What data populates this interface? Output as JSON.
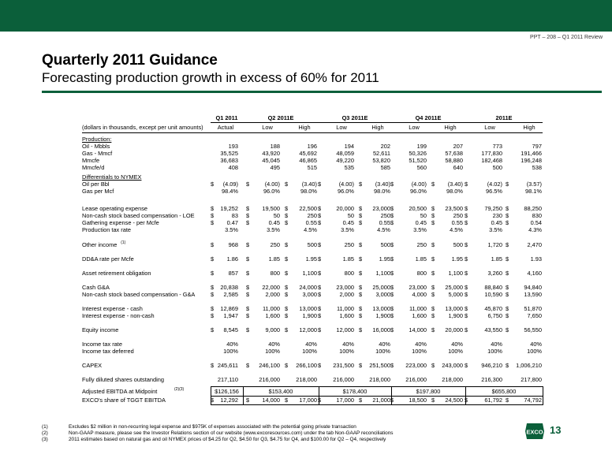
{
  "header": {
    "ppt_label": "PPT – 208 – Q1 2011 Review"
  },
  "title": "Quarterly 2011 Guidance",
  "subtitle": "Forecasting production growth in excess of 60% for 2011",
  "table": {
    "period_headers": [
      "Q1 2011",
      "Q2 2011E",
      "Q3 2011E",
      "Q4 2011E",
      "2011E"
    ],
    "units_label": "(dollars in thousands, except per unit amounts)",
    "sub_headers": [
      "Actual",
      "Low",
      "High",
      "Low",
      "High",
      "Low",
      "High",
      "Low",
      "High"
    ],
    "sections": {
      "production": "Production:",
      "differentials": "Differentials to NYMEX"
    },
    "rows": [
      {
        "label": "Oil - Mbbls",
        "dollar": false,
        "values": [
          "193",
          "188",
          "196",
          "194",
          "202",
          "199",
          "207",
          "773",
          "797"
        ]
      },
      {
        "label": "Gas - Mmcf",
        "dollar": false,
        "values": [
          "35,525",
          "43,920",
          "45,692",
          "48,059",
          "52,611",
          "50,326",
          "57,638",
          "177,830",
          "191,466"
        ]
      },
      {
        "label": "Mmcfe",
        "dollar": false,
        "values": [
          "36,683",
          "45,045",
          "46,865",
          "49,220",
          "53,820",
          "51,520",
          "58,880",
          "182,468",
          "196,248"
        ]
      },
      {
        "label": "Mmcfe/d",
        "dollar": false,
        "values": [
          "408",
          "495",
          "515",
          "535",
          "585",
          "560",
          "640",
          "500",
          "538"
        ]
      },
      {
        "label": "Oil per Bbl",
        "dollar": true,
        "values": [
          "(4.09)",
          "(4.00)",
          "(3.40)",
          "(4.00)",
          "(3.40)",
          "(4.00)",
          "(3.40)",
          "(4.02)",
          "(3.57)"
        ]
      },
      {
        "label": "Gas per Mcf",
        "dollar": false,
        "values": [
          "98.4%",
          "96.0%",
          "98.0%",
          "96.0%",
          "98.0%",
          "96.0%",
          "98.0%",
          "96.5%",
          "98.1%"
        ]
      },
      {
        "label": "Lease operating expense",
        "dollar": true,
        "values": [
          "19,252",
          "19,500",
          "22,500",
          "20,000",
          "23,000",
          "20,500",
          "23,500",
          "79,250",
          "88,250"
        ]
      },
      {
        "label": "Non-cash stock based compensation - LOE",
        "dollar": true,
        "values": [
          "83",
          "50",
          "250",
          "50",
          "250",
          "50",
          "250",
          "230",
          "830"
        ]
      },
      {
        "label": "Gathering expense - per Mcfe",
        "dollar": true,
        "values": [
          "0.47",
          "0.45",
          "0.55",
          "0.45",
          "0.55",
          "0.45",
          "0.55",
          "0.45",
          "0.54"
        ]
      },
      {
        "label": "Production tax rate",
        "dollar": false,
        "values": [
          "3.5%",
          "3.5%",
          "4.5%",
          "3.5%",
          "4.5%",
          "3.5%",
          "4.5%",
          "3.5%",
          "4.3%"
        ]
      },
      {
        "label": "Other income",
        "sup": "(1)",
        "dollar": true,
        "values": [
          "968",
          "250",
          "500",
          "250",
          "500",
          "250",
          "500",
          "1,720",
          "2,470"
        ]
      },
      {
        "label": "DD&A rate per Mcfe",
        "dollar": true,
        "values": [
          "1.86",
          "1.85",
          "1.95",
          "1.85",
          "1.95",
          "1.85",
          "1.95",
          "1.85",
          "1.93"
        ]
      },
      {
        "label": "Asset retirement obligation",
        "dollar": true,
        "values": [
          "857",
          "800",
          "1,100",
          "800",
          "1,100",
          "800",
          "1,100",
          "3,260",
          "4,160"
        ]
      },
      {
        "label": "Cash G&A",
        "dollar": true,
        "values": [
          "20,838",
          "22,000",
          "24,000",
          "23,000",
          "25,000",
          "23,000",
          "25,000",
          "88,840",
          "94,840"
        ]
      },
      {
        "label": "Non-cash stock based compensation - G&A",
        "dollar": true,
        "values": [
          "2,585",
          "2,000",
          "3,000",
          "2,000",
          "3,000",
          "4,000",
          "5,000",
          "10,590",
          "13,590"
        ]
      },
      {
        "label": "Interest expense - cash",
        "dollar": true,
        "values": [
          "12,869",
          "11,000",
          "13,000",
          "11,000",
          "13,000",
          "11,000",
          "13,000",
          "45,870",
          "51,870"
        ]
      },
      {
        "label": "Interest expense - non-cash",
        "dollar": true,
        "values": [
          "1,947",
          "1,600",
          "1,900",
          "1,600",
          "1,900",
          "1,600",
          "1,900",
          "6,750",
          "7,650"
        ]
      },
      {
        "label": "Equity income",
        "dollar": true,
        "values": [
          "8,545",
          "9,000",
          "12,000",
          "12,000",
          "16,000",
          "14,000",
          "20,000",
          "43,550",
          "56,550"
        ]
      },
      {
        "label": "Income tax rate",
        "dollar": false,
        "values": [
          "40%",
          "40%",
          "40%",
          "40%",
          "40%",
          "40%",
          "40%",
          "40%",
          "40%"
        ]
      },
      {
        "label": "Income tax deferred",
        "dollar": false,
        "values": [
          "100%",
          "100%",
          "100%",
          "100%",
          "100%",
          "100%",
          "100%",
          "100%",
          "100%"
        ]
      },
      {
        "label": "CAPEX",
        "dollar": true,
        "values": [
          "245,611",
          "246,100",
          "266,100",
          "231,500",
          "251,500",
          "223,000",
          "243,000",
          "946,210",
          "1,006,210"
        ]
      },
      {
        "label": "Fully diluted shares outstanding",
        "dollar": false,
        "values": [
          "217,110",
          "216,000",
          "218,000",
          "216,000",
          "218,000",
          "216,000",
          "218,000",
          "216,300",
          "217,800"
        ]
      }
    ],
    "ebitda": {
      "label": "Adjusted EBITDA at Midpoint",
      "sup": "(2)(3)",
      "values": [
        "$126,156",
        "$153,400",
        "$178,400",
        "$197,800",
        "$655,800"
      ]
    },
    "share": {
      "label": "EXCO's share of TGGT EBITDA",
      "values": [
        "12,292",
        "14,000",
        "17,000",
        "17,000",
        "21,000",
        "18,500",
        "24,500",
        "61,792",
        "74,792"
      ]
    }
  },
  "footnotes": [
    {
      "num": "(1)",
      "text": "Excludes $2 million in non-recurring legal expense and $975K of expenses associated with the potential going private transaction"
    },
    {
      "num": "(2)",
      "text": "Non-GAAP measure, please see the Investor Relations section of our website (www.excoresources.com) under the tab Non-GAAP reconciliations"
    },
    {
      "num": "(3)",
      "text": "2011 estimates based on natural gas and oil NYMEX prices of $4.25 for Q2, $4.50 for Q3, $4.75 for Q4, and $100.00 for Q2 – Q4, respectively"
    }
  ],
  "logo_text": "EXCO",
  "page_number": "13",
  "colors": {
    "brand_green": "#0b5f3a"
  }
}
